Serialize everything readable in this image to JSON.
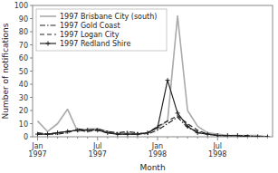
{
  "chart_data": {
    "type": "line",
    "x_label": "Month",
    "y_label": "Number of notifications",
    "categories": [
      "Jan\n1997",
      null,
      null,
      null,
      null,
      null,
      "Jul\n1997",
      null,
      null,
      null,
      null,
      null,
      "Jan\n1998",
      null,
      null,
      null,
      null,
      null,
      "Jul\n1998",
      null,
      null,
      null,
      null,
      null
    ],
    "ylim": [
      0,
      100
    ],
    "yticks": [
      0,
      10,
      20,
      30,
      40,
      50,
      60,
      70,
      80,
      90,
      100
    ],
    "grid": false,
    "legend": "upper left",
    "series": [
      {
        "name": "1997 Brisbane City (south)",
        "color": "#aaaaaa",
        "line_style": "solid",
        "values": [
          12,
          4,
          10,
          21,
          4,
          6,
          6,
          4,
          2,
          3,
          2,
          3,
          7,
          12,
          92,
          20,
          8,
          3,
          2,
          1,
          1,
          1,
          1,
          0
        ]
      },
      {
        "name": "1997 Gold Coast",
        "color": "#222222",
        "line_style": "dashdot",
        "values": [
          3,
          2,
          2,
          3,
          6,
          5,
          6,
          4,
          3,
          4,
          3,
          2,
          5,
          10,
          15,
          7,
          4,
          2,
          1,
          1,
          1,
          1,
          0,
          0
        ]
      },
      {
        "name": "1997 Logan City",
        "color": "#222222",
        "line_style": "dashed",
        "values": [
          2,
          2,
          3,
          4,
          5,
          4,
          5,
          3,
          2,
          2,
          2,
          3,
          8,
          12,
          16,
          10,
          5,
          2,
          1,
          1,
          1,
          0,
          0,
          0
        ]
      },
      {
        "name": "1997 Redland Shire",
        "color": "#222222",
        "line_style": "solid",
        "marker": "plus",
        "values": [
          2,
          2,
          3,
          4,
          5,
          5,
          5,
          3,
          2,
          2,
          2,
          3,
          7,
          43,
          18,
          8,
          3,
          2,
          1,
          1,
          1,
          0,
          0,
          0
        ]
      }
    ]
  }
}
